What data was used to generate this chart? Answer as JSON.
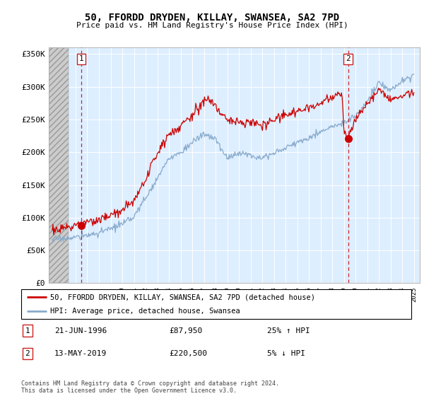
{
  "title": "50, FFORDD DRYDEN, KILLAY, SWANSEA, SA2 7PD",
  "subtitle": "Price paid vs. HM Land Registry's House Price Index (HPI)",
  "ylim": [
    0,
    360000
  ],
  "yticks": [
    0,
    50000,
    100000,
    150000,
    200000,
    250000,
    300000,
    350000
  ],
  "ytick_labels": [
    "£0",
    "£50K",
    "£100K",
    "£150K",
    "£200K",
    "£250K",
    "£300K",
    "£350K"
  ],
  "xlim_start": 1993.7,
  "xlim_end": 2025.5,
  "hatch_end": 1995.4,
  "sale1_date": 1996.47,
  "sale1_price": 87950,
  "sale1_label": "1",
  "sale2_date": 2019.36,
  "sale2_price": 220500,
  "sale2_label": "2",
  "red_line_color": "#cc0000",
  "blue_line_color": "#88aacc",
  "bg_color": "#ddeeff",
  "grid_color": "#ffffff",
  "annotation1_date": "21-JUN-1996",
  "annotation1_price": "£87,950",
  "annotation1_hpi": "25% ↑ HPI",
  "annotation2_date": "13-MAY-2019",
  "annotation2_price": "£220,500",
  "annotation2_hpi": "5% ↓ HPI",
  "legend_label1": "50, FFORDD DRYDEN, KILLAY, SWANSEA, SA2 7PD (detached house)",
  "legend_label2": "HPI: Average price, detached house, Swansea",
  "footer": "Contains HM Land Registry data © Crown copyright and database right 2024.\nThis data is licensed under the Open Government Licence v3.0."
}
